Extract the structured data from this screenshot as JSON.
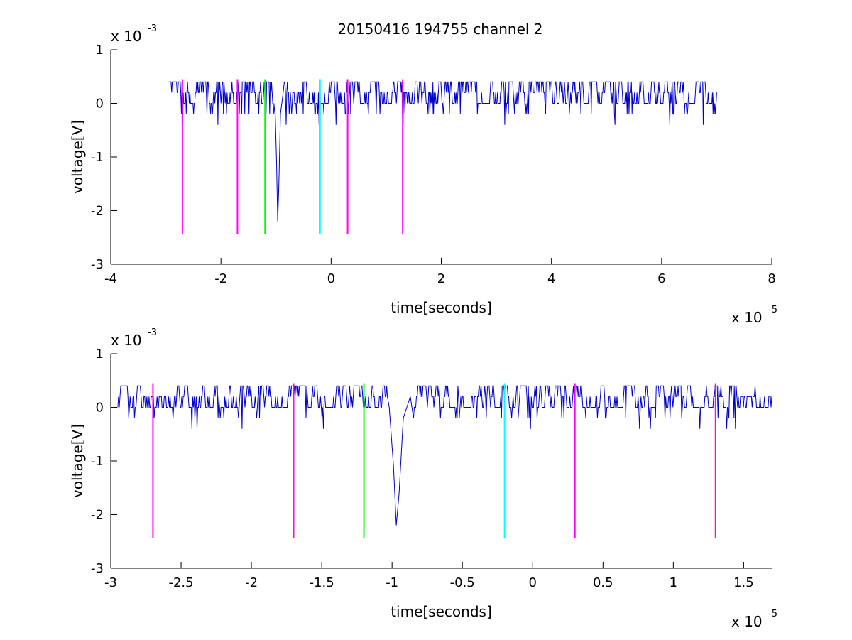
{
  "chart_data": [
    {
      "type": "line",
      "title": "20150416 194755 channel 2",
      "xlabel": "time[seconds]",
      "ylabel": "voltage[V]",
      "xlim": [
        -4e-05,
        8e-05
      ],
      "ylim": [
        -0.003,
        0.001
      ],
      "x_ticks": [
        -4e-05,
        -2e-05,
        0,
        2e-05,
        4e-05,
        6e-05,
        8e-05
      ],
      "x_tick_labels": [
        "-4",
        "-2",
        "0",
        "2",
        "4",
        "6",
        "8"
      ],
      "y_ticks": [
        0.001,
        0,
        -0.001,
        -0.002,
        -0.003
      ],
      "y_tick_labels": [
        "1",
        "0",
        "-1",
        "-2",
        "-3"
      ],
      "x_multiplier": {
        "base": "x 10",
        "exponent": "-5"
      },
      "y_multiplier": {
        "base": "x 10",
        "exponent": "-3"
      },
      "grid": false,
      "trace": {
        "color": "#0000cc",
        "x_start": -2.95e-05,
        "x_end": 7e-05,
        "baseline_levels": [
          0,
          0.0002,
          0.0004
        ],
        "spike": {
          "x": -9.7e-06,
          "min": -0.0022
        }
      },
      "markers": [
        {
          "x": -2.7e-05,
          "color": "#ff00ff",
          "y_top": 0.00045,
          "y_bottom": -0.00243
        },
        {
          "x": -1.7e-05,
          "color": "#ff00ff",
          "y_top": 0.00045,
          "y_bottom": -0.00243
        },
        {
          "x": -1.2e-05,
          "color": "#00ff00",
          "y_top": 0.00045,
          "y_bottom": -0.00243
        },
        {
          "x": -2e-06,
          "color": "#00ffff",
          "y_top": 0.00045,
          "y_bottom": -0.00243
        },
        {
          "x": 3e-06,
          "color": "#ff00ff",
          "y_top": 0.00045,
          "y_bottom": -0.00243
        },
        {
          "x": 1.3e-05,
          "color": "#ff00ff",
          "y_top": 0.00045,
          "y_bottom": -0.00243
        }
      ]
    },
    {
      "type": "line",
      "title": "",
      "xlabel": "time[seconds]",
      "ylabel": "voltage[V]",
      "xlim": [
        -3e-05,
        1.7e-05
      ],
      "ylim": [
        -0.003,
        0.001
      ],
      "x_ticks": [
        -3e-05,
        -2.5e-05,
        -2e-05,
        -1.5e-05,
        -1e-05,
        -5e-06,
        0,
        5e-06,
        1e-05,
        1.5e-05
      ],
      "x_tick_labels": [
        "-3",
        "-2.5",
        "-2",
        "-1.5",
        "-1",
        "-0.5",
        "0",
        "0.5",
        "1",
        "1.5"
      ],
      "y_ticks": [
        0.001,
        0,
        -0.001,
        -0.002,
        -0.003
      ],
      "y_tick_labels": [
        "1",
        "0",
        "-1",
        "-2",
        "-3"
      ],
      "x_multiplier": {
        "base": "x 10",
        "exponent": "-5"
      },
      "y_multiplier": {
        "base": "x 10",
        "exponent": "-3"
      },
      "grid": false,
      "trace": {
        "color": "#0000cc",
        "x_start": -2.95e-05,
        "x_end": 1.7e-05,
        "baseline_levels": [
          0,
          0.0002,
          0.0004
        ],
        "spike": {
          "x": -9.7e-06,
          "min": -0.0022
        }
      },
      "markers": [
        {
          "x": -2.7e-05,
          "color": "#ff00ff",
          "y_top": 0.00045,
          "y_bottom": -0.00243
        },
        {
          "x": -1.7e-05,
          "color": "#ff00ff",
          "y_top": 0.00045,
          "y_bottom": -0.00243
        },
        {
          "x": -1.2e-05,
          "color": "#00ff00",
          "y_top": 0.00045,
          "y_bottom": -0.00243
        },
        {
          "x": -2e-06,
          "color": "#00ffff",
          "y_top": 0.00045,
          "y_bottom": -0.00243
        },
        {
          "x": 3e-06,
          "color": "#ff00ff",
          "y_top": 0.00045,
          "y_bottom": -0.00243
        },
        {
          "x": 1.3e-05,
          "color": "#ff00ff",
          "y_top": 0.00045,
          "y_bottom": -0.00243
        }
      ]
    }
  ]
}
